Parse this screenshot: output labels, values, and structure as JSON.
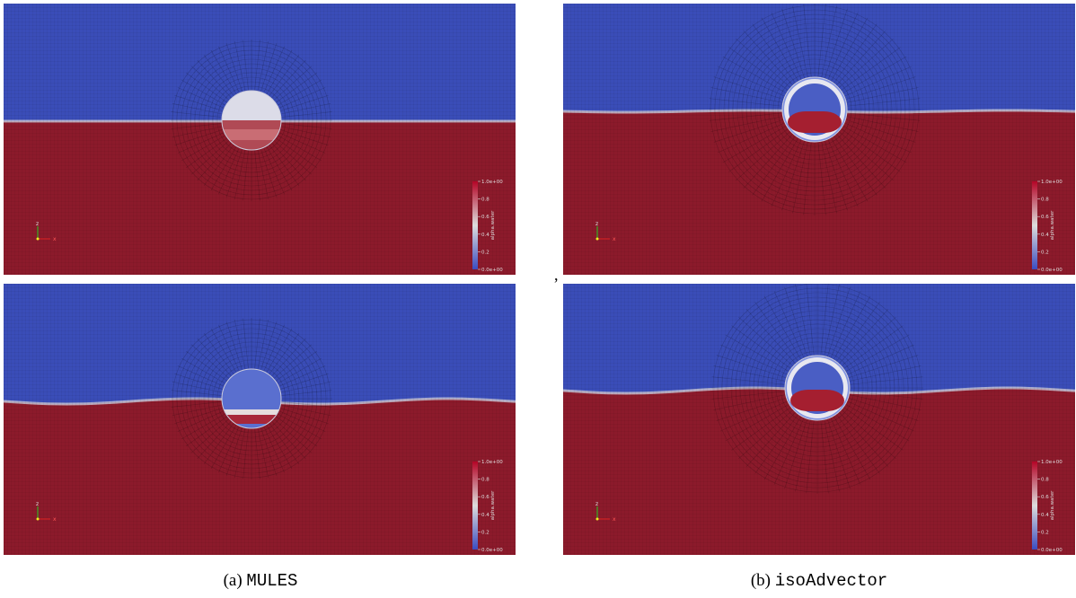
{
  "figure": {
    "colorbar": {
      "label": "alpha.water",
      "ticks": [
        "1.0e+00",
        "0.8",
        "0.6",
        "0.4",
        "0.2",
        "0.0e+00"
      ]
    },
    "axes_triad": {
      "up": "z",
      "right": "x"
    },
    "separator": ",",
    "captions": [
      {
        "label": "(a)",
        "name": "MULES"
      },
      {
        "label": "(b)",
        "name": "isoAdvector"
      }
    ]
  }
}
